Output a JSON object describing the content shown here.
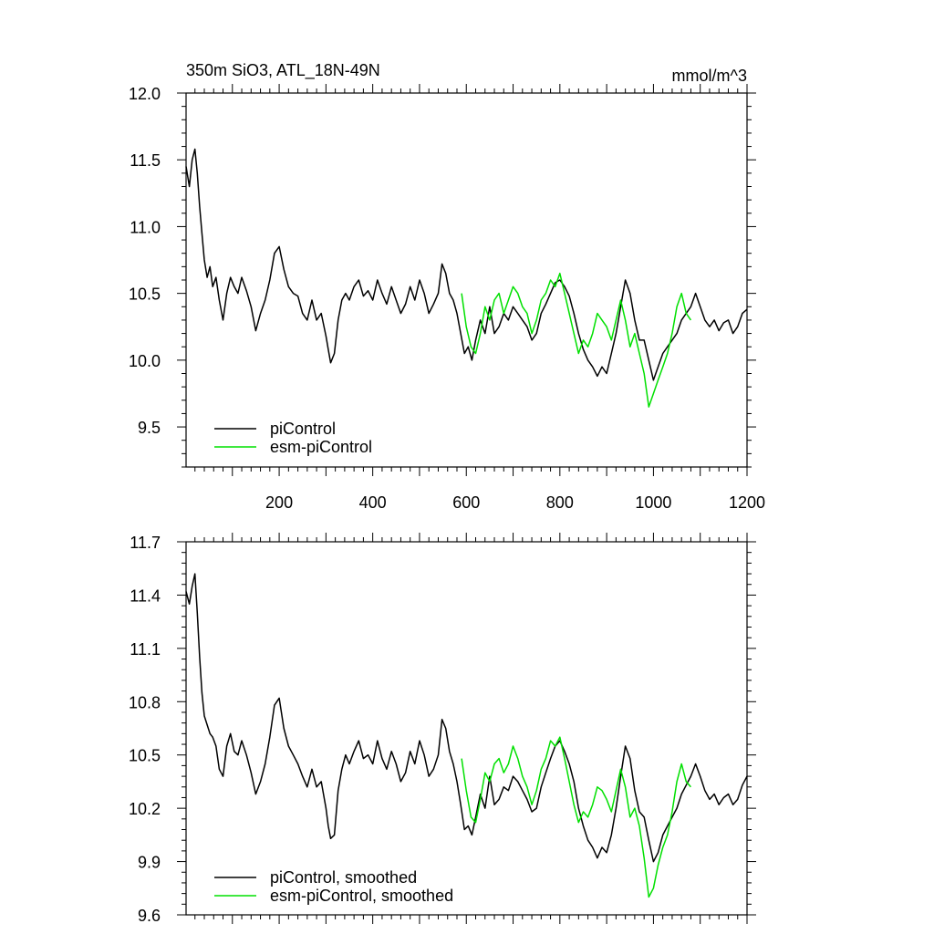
{
  "chart_data": [
    {
      "type": "line",
      "title": "350m SiO3, ATL_18N-49N",
      "units": "mmol/m^3",
      "xlim": [
        1,
        1200
      ],
      "ylim": [
        9.2,
        12.0
      ],
      "x_ticks": [
        200,
        400,
        600,
        800,
        1000,
        1200
      ],
      "x_tick_labels": [
        "200",
        "400",
        "600",
        "800",
        "1000",
        "1200"
      ],
      "y_ticks": [
        9.5,
        10.0,
        10.5,
        11.0,
        11.5,
        12.0
      ],
      "y_tick_labels": [
        "9.5",
        "10.0",
        "10.5",
        "11.0",
        "11.5",
        "12.0"
      ],
      "legend_position": "bottom-left",
      "series": [
        {
          "name": "piControl",
          "color": "#000000",
          "x": [
            1,
            8,
            14,
            20,
            25,
            30,
            35,
            40,
            46,
            52,
            58,
            65,
            72,
            80,
            88,
            96,
            104,
            112,
            120,
            130,
            140,
            150,
            160,
            170,
            180,
            190,
            200,
            210,
            220,
            230,
            240,
            250,
            260,
            270,
            280,
            290,
            300,
            305,
            310,
            318,
            326,
            334,
            342,
            350,
            360,
            370,
            380,
            390,
            400,
            410,
            420,
            430,
            440,
            450,
            460,
            470,
            480,
            490,
            500,
            510,
            520,
            530,
            540,
            548,
            556,
            564,
            572,
            580,
            588,
            596,
            604,
            612,
            620,
            630,
            640,
            650,
            660,
            670,
            680,
            690,
            700,
            710,
            720,
            730,
            740,
            750,
            760,
            770,
            780,
            790,
            800,
            810,
            820,
            830,
            840,
            850,
            860,
            870,
            880,
            890,
            900,
            910,
            920,
            930,
            940,
            950,
            960,
            970,
            980,
            990,
            1000,
            1010,
            1020,
            1030,
            1040,
            1050,
            1060,
            1070,
            1080,
            1090,
            1100,
            1110,
            1120,
            1130,
            1140,
            1150,
            1160,
            1170,
            1180,
            1190,
            1200
          ],
          "values": [
            11.45,
            11.3,
            11.5,
            11.58,
            11.4,
            11.15,
            10.95,
            10.75,
            10.62,
            10.7,
            10.55,
            10.62,
            10.45,
            10.3,
            10.5,
            10.62,
            10.55,
            10.5,
            10.62,
            10.52,
            10.4,
            10.22,
            10.35,
            10.45,
            10.6,
            10.8,
            10.85,
            10.68,
            10.55,
            10.5,
            10.48,
            10.35,
            10.3,
            10.45,
            10.3,
            10.35,
            10.18,
            10.08,
            9.98,
            10.05,
            10.3,
            10.45,
            10.5,
            10.45,
            10.55,
            10.6,
            10.48,
            10.52,
            10.45,
            10.6,
            10.5,
            10.42,
            10.55,
            10.45,
            10.35,
            10.42,
            10.55,
            10.45,
            10.6,
            10.5,
            10.35,
            10.42,
            10.5,
            10.72,
            10.65,
            10.5,
            10.45,
            10.35,
            10.2,
            10.05,
            10.1,
            10.0,
            10.15,
            10.3,
            10.2,
            10.4,
            10.2,
            10.25,
            10.35,
            10.3,
            10.4,
            10.35,
            10.3,
            10.25,
            10.15,
            10.2,
            10.35,
            10.42,
            10.5,
            10.58,
            10.6,
            10.55,
            10.48,
            10.35,
            10.2,
            10.08,
            10.0,
            9.95,
            9.88,
            9.95,
            9.9,
            10.05,
            10.2,
            10.4,
            10.6,
            10.5,
            10.3,
            10.15,
            10.15,
            10.0,
            9.85,
            9.95,
            10.05,
            10.1,
            10.15,
            10.2,
            10.3,
            10.35,
            10.4,
            10.5,
            10.4,
            10.3,
            10.25,
            10.3,
            10.22,
            10.28,
            10.3,
            10.2,
            10.25,
            10.35,
            10.38
          ]
        },
        {
          "name": "esm-piControl",
          "color": "#00e000",
          "x": [
            590,
            600,
            610,
            620,
            630,
            640,
            650,
            660,
            670,
            680,
            690,
            700,
            710,
            720,
            730,
            740,
            750,
            760,
            770,
            780,
            790,
            800,
            810,
            820,
            830,
            840,
            850,
            860,
            870,
            880,
            890,
            900,
            910,
            920,
            930,
            940,
            950,
            960,
            970,
            980,
            990,
            1000,
            1010,
            1020,
            1030,
            1040,
            1050,
            1060,
            1070,
            1080
          ],
          "values": [
            10.5,
            10.25,
            10.1,
            10.05,
            10.2,
            10.4,
            10.3,
            10.45,
            10.5,
            10.35,
            10.45,
            10.55,
            10.5,
            10.4,
            10.35,
            10.2,
            10.3,
            10.45,
            10.5,
            10.6,
            10.55,
            10.65,
            10.5,
            10.35,
            10.2,
            10.05,
            10.15,
            10.1,
            10.2,
            10.35,
            10.3,
            10.25,
            10.15,
            10.3,
            10.45,
            10.3,
            10.1,
            10.2,
            10.05,
            9.9,
            9.65,
            9.75,
            9.85,
            9.95,
            10.05,
            10.2,
            10.4,
            10.5,
            10.35,
            10.3
          ]
        }
      ]
    },
    {
      "type": "line",
      "xlim": [
        1,
        1200
      ],
      "ylim": [
        9.6,
        11.7
      ],
      "y_ticks": [
        9.6,
        9.9,
        10.2,
        10.5,
        10.8,
        11.1,
        11.4,
        11.7
      ],
      "y_tick_labels": [
        "9.6",
        "9.9",
        "10.2",
        "10.5",
        "10.8",
        "11.1",
        "11.4",
        "11.7"
      ],
      "legend_position": "bottom-left",
      "series": [
        {
          "name": "piControl, smoothed",
          "color": "#000000",
          "x": [
            1,
            8,
            14,
            20,
            25,
            30,
            35,
            40,
            46,
            52,
            58,
            65,
            72,
            80,
            88,
            96,
            104,
            112,
            120,
            130,
            140,
            150,
            160,
            170,
            180,
            190,
            200,
            210,
            220,
            230,
            240,
            250,
            260,
            270,
            280,
            290,
            300,
            305,
            310,
            318,
            326,
            334,
            342,
            350,
            360,
            370,
            380,
            390,
            400,
            410,
            420,
            430,
            440,
            450,
            460,
            470,
            480,
            490,
            500,
            510,
            520,
            530,
            540,
            548,
            556,
            564,
            572,
            580,
            588,
            596,
            604,
            612,
            620,
            630,
            640,
            650,
            660,
            670,
            680,
            690,
            700,
            710,
            720,
            730,
            740,
            750,
            760,
            770,
            780,
            790,
            800,
            810,
            820,
            830,
            840,
            850,
            860,
            870,
            880,
            890,
            900,
            910,
            920,
            930,
            940,
            950,
            960,
            970,
            980,
            990,
            1000,
            1010,
            1020,
            1030,
            1040,
            1050,
            1060,
            1070,
            1080,
            1090,
            1100,
            1110,
            1120,
            1130,
            1140,
            1150,
            1160,
            1170,
            1180,
            1190,
            1200
          ],
          "values": [
            11.42,
            11.35,
            11.45,
            11.52,
            11.3,
            11.05,
            10.85,
            10.72,
            10.67,
            10.62,
            10.6,
            10.55,
            10.42,
            10.38,
            10.55,
            10.62,
            10.52,
            10.5,
            10.58,
            10.5,
            10.4,
            10.28,
            10.35,
            10.45,
            10.6,
            10.78,
            10.82,
            10.65,
            10.55,
            10.5,
            10.45,
            10.38,
            10.32,
            10.42,
            10.32,
            10.35,
            10.2,
            10.1,
            10.03,
            10.05,
            10.3,
            10.42,
            10.5,
            10.45,
            10.52,
            10.58,
            10.48,
            10.5,
            10.45,
            10.58,
            10.48,
            10.42,
            10.52,
            10.45,
            10.35,
            10.4,
            10.52,
            10.45,
            10.58,
            10.5,
            10.38,
            10.42,
            10.5,
            10.7,
            10.65,
            10.52,
            10.45,
            10.35,
            10.22,
            10.08,
            10.1,
            10.05,
            10.15,
            10.28,
            10.2,
            10.38,
            10.22,
            10.25,
            10.32,
            10.3,
            10.38,
            10.35,
            10.3,
            10.25,
            10.18,
            10.2,
            10.32,
            10.4,
            10.48,
            10.55,
            10.58,
            10.52,
            10.45,
            10.35,
            10.2,
            10.1,
            10.02,
            9.98,
            9.92,
            9.98,
            9.95,
            10.05,
            10.2,
            10.38,
            10.55,
            10.48,
            10.3,
            10.18,
            10.15,
            10.02,
            9.9,
            9.95,
            10.05,
            10.1,
            10.15,
            10.2,
            10.28,
            10.33,
            10.38,
            10.45,
            10.38,
            10.3,
            10.25,
            10.28,
            10.22,
            10.26,
            10.28,
            10.22,
            10.25,
            10.33,
            10.38
          ]
        },
        {
          "name": "esm-piControl, smoothed",
          "color": "#00e000",
          "x": [
            590,
            600,
            610,
            620,
            630,
            640,
            650,
            660,
            670,
            680,
            690,
            700,
            710,
            720,
            730,
            740,
            750,
            760,
            770,
            780,
            790,
            800,
            810,
            820,
            830,
            840,
            850,
            860,
            870,
            880,
            890,
            900,
            910,
            920,
            930,
            940,
            950,
            960,
            970,
            980,
            990,
            1000,
            1010,
            1020,
            1030,
            1040,
            1050,
            1060,
            1070,
            1080
          ],
          "values": [
            10.48,
            10.3,
            10.15,
            10.12,
            10.25,
            10.4,
            10.35,
            10.45,
            10.48,
            10.4,
            10.45,
            10.55,
            10.48,
            10.38,
            10.32,
            10.22,
            10.3,
            10.42,
            10.48,
            10.58,
            10.55,
            10.6,
            10.48,
            10.35,
            10.22,
            10.12,
            10.18,
            10.15,
            10.22,
            10.32,
            10.3,
            10.25,
            10.18,
            10.3,
            10.42,
            10.32,
            10.15,
            10.2,
            10.1,
            9.92,
            9.7,
            9.75,
            9.88,
            9.98,
            10.05,
            10.18,
            10.35,
            10.45,
            10.35,
            10.32
          ]
        }
      ]
    }
  ]
}
